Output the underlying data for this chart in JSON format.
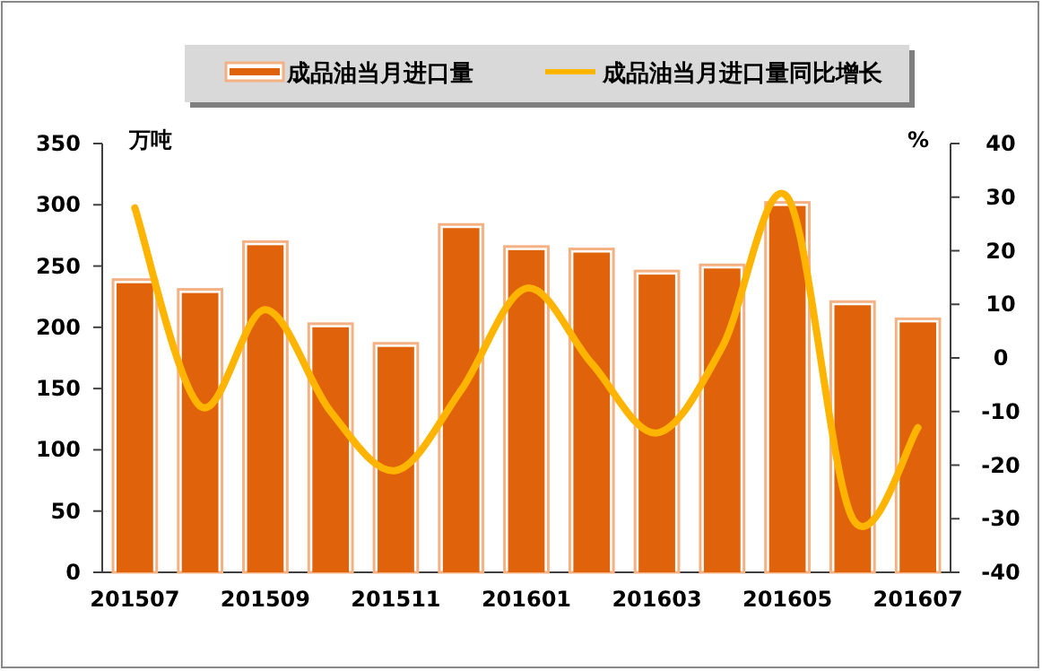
{
  "chart_data": {
    "type": "bar",
    "categories": [
      "201507",
      null,
      "201509",
      null,
      "201511",
      null,
      "201601",
      null,
      "201603",
      null,
      "201605",
      null,
      "201607"
    ],
    "series": [
      {
        "name": "成品油当月进口量",
        "color": "#e0620a",
        "values": [
          236,
          228,
          267,
          200,
          184,
          281,
          263,
          261,
          243,
          248,
          299,
          218,
          204
        ]
      },
      {
        "name": "成品油当月进口量同比增长",
        "type": "line",
        "axis": "y2",
        "color": "#ffb400",
        "values": [
          28,
          -9,
          9,
          -10,
          -21,
          -6,
          13,
          -1,
          -14,
          2,
          30,
          -30,
          -13
        ]
      }
    ],
    "ylabel": "万吨",
    "y2label": "%",
    "ylim": [
      0,
      350
    ],
    "yticks": [
      0,
      50,
      100,
      150,
      200,
      250,
      300,
      350
    ],
    "y2lim": [
      -40,
      40
    ],
    "y2ticks": [
      -40,
      -30,
      -20,
      -10,
      0,
      10,
      20,
      30,
      40
    ],
    "legend": "top",
    "marker": "none"
  }
}
